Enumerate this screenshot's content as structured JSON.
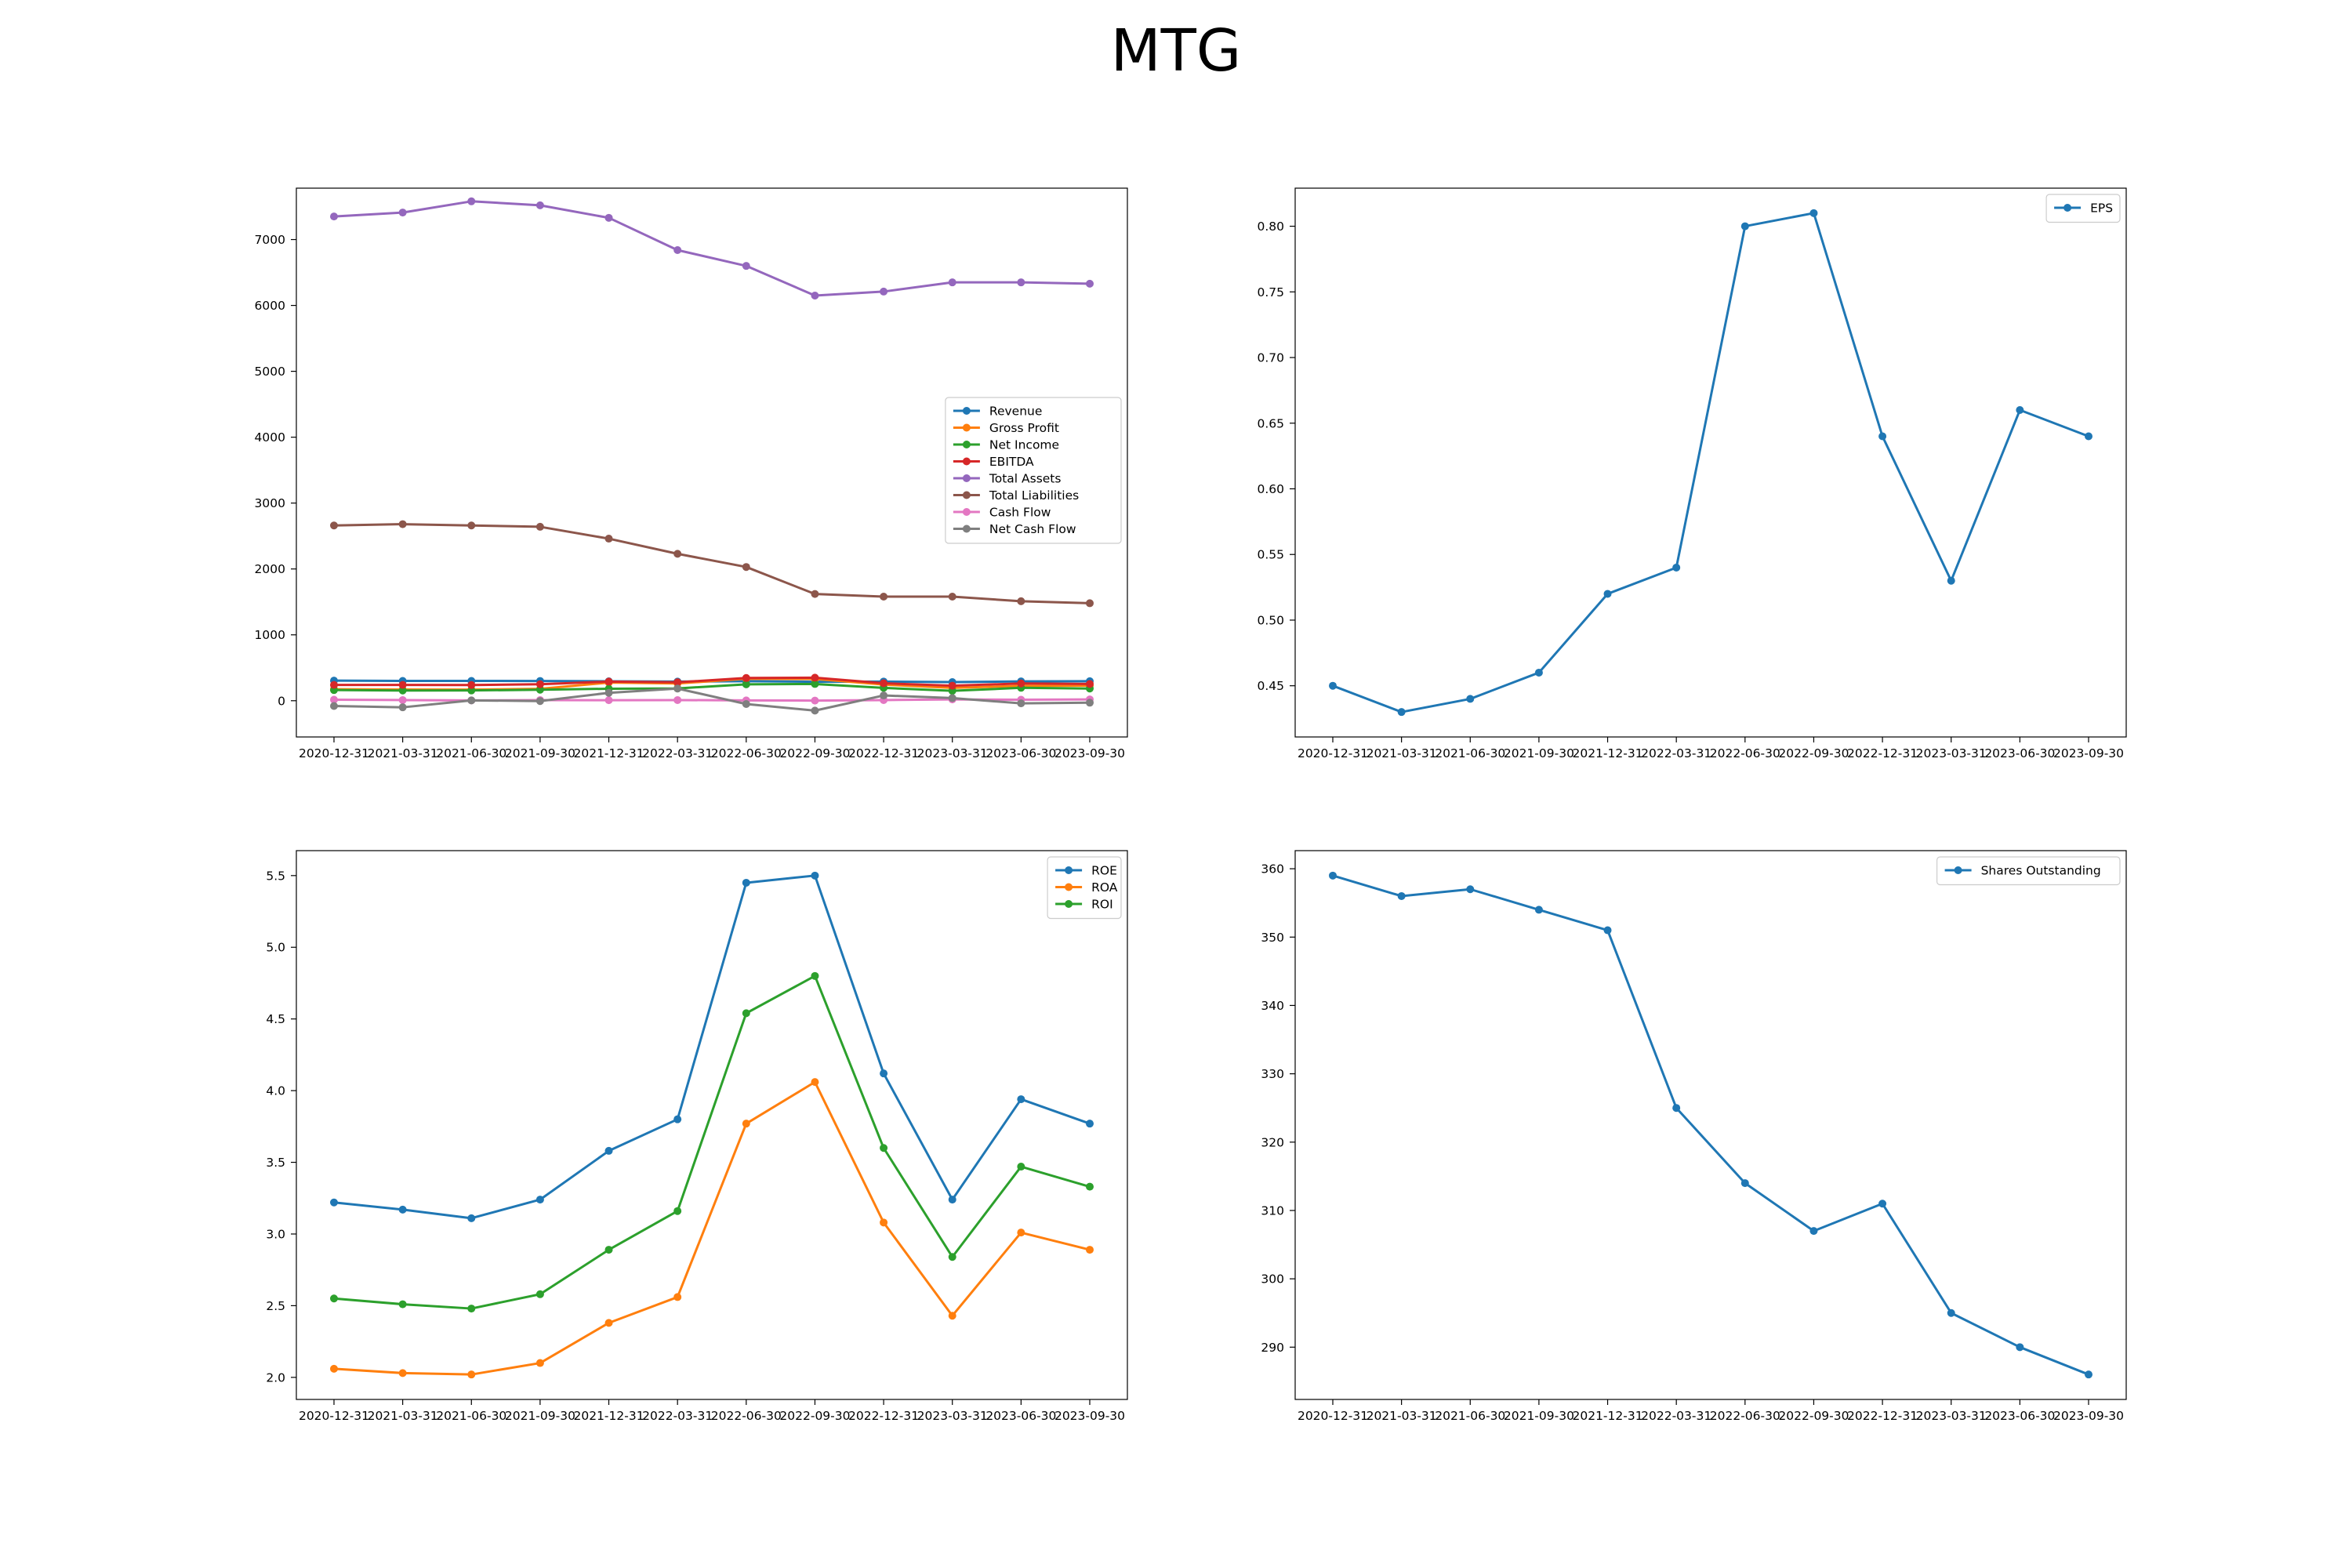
{
  "title": "MTG",
  "chart_data": [
    {
      "type": "line",
      "title": "",
      "xlabel": "",
      "ylabel": "",
      "categories": [
        "2020-12-31",
        "2021-03-31",
        "2021-06-30",
        "2021-09-30",
        "2021-12-31",
        "2022-03-31",
        "2022-06-30",
        "2022-09-30",
        "2022-12-31",
        "2023-03-31",
        "2023-06-30",
        "2023-09-30"
      ],
      "ylim": [
        -550,
        7780
      ],
      "yticks": [
        0,
        1000,
        2000,
        3000,
        4000,
        5000,
        6000,
        7000
      ],
      "ytick_decimals": 0,
      "legend": "center-right",
      "grid": false,
      "series": [
        {
          "name": "Revenue",
          "color": "#1f77b4",
          "values": [
            305,
            301,
            301,
            300,
            295,
            290,
            297,
            288,
            291,
            283,
            293,
            296
          ]
        },
        {
          "name": "Gross Profit",
          "color": "#ff7f0e",
          "values": [
            175,
            170,
            168,
            180,
            275,
            262,
            333,
            330,
            245,
            195,
            225,
            230
          ]
        },
        {
          "name": "Net Income",
          "color": "#2ca02c",
          "values": [
            162,
            155,
            156,
            167,
            182,
            187,
            249,
            254,
            195,
            150,
            196,
            185
          ]
        },
        {
          "name": "EBITDA",
          "color": "#d62728",
          "values": [
            240,
            240,
            238,
            250,
            290,
            280,
            345,
            350,
            265,
            228,
            262,
            255
          ]
        },
        {
          "name": "Total Assets",
          "color": "#9467bd",
          "values": [
            7350,
            7410,
            7580,
            7520,
            7330,
            6840,
            6600,
            6150,
            6210,
            6350,
            6350,
            6330
          ]
        },
        {
          "name": "Total Liabilities",
          "color": "#8c564b",
          "values": [
            2660,
            2680,
            2660,
            2640,
            2460,
            2230,
            2030,
            1620,
            1580,
            1580,
            1510,
            1480
          ]
        },
        {
          "name": "Cash Flow",
          "color": "#e377c2",
          "values": [
            15,
            10,
            5,
            10,
            8,
            10,
            5,
            2,
            10,
            20,
            15,
            20
          ]
        },
        {
          "name": "Net Cash Flow",
          "color": "#7f7f7f",
          "values": [
            -80,
            -100,
            5,
            -5,
            120,
            185,
            -50,
            -150,
            80,
            40,
            -40,
            -30
          ]
        }
      ]
    },
    {
      "type": "line",
      "title": "",
      "xlabel": "",
      "ylabel": "",
      "categories": [
        "2020-12-31",
        "2021-03-31",
        "2021-06-30",
        "2021-09-30",
        "2021-12-31",
        "2022-03-31",
        "2022-06-30",
        "2022-09-30",
        "2022-12-31",
        "2023-03-31",
        "2023-06-30",
        "2023-09-30"
      ],
      "ylim": [
        0.411,
        0.829
      ],
      "yticks": [
        0.45,
        0.5,
        0.55,
        0.6,
        0.65,
        0.7,
        0.75,
        0.8
      ],
      "ytick_decimals": 2,
      "legend": "top-right",
      "grid": false,
      "series": [
        {
          "name": "EPS",
          "color": "#1f77b4",
          "values": [
            0.45,
            0.43,
            0.44,
            0.46,
            0.52,
            0.54,
            0.8,
            0.81,
            0.64,
            0.53,
            0.66,
            0.64
          ]
        }
      ]
    },
    {
      "type": "line",
      "title": "",
      "xlabel": "",
      "ylabel": "",
      "categories": [
        "2020-12-31",
        "2021-03-31",
        "2021-06-30",
        "2021-09-30",
        "2021-12-31",
        "2022-03-31",
        "2022-06-30",
        "2022-09-30",
        "2022-12-31",
        "2023-03-31",
        "2023-06-30",
        "2023-09-30"
      ],
      "ylim": [
        1.846,
        5.674
      ],
      "yticks": [
        2.0,
        2.5,
        3.0,
        3.5,
        4.0,
        4.5,
        5.0,
        5.5
      ],
      "ytick_decimals": 1,
      "legend": "top-right",
      "grid": false,
      "series": [
        {
          "name": "ROE",
          "color": "#1f77b4",
          "values": [
            3.22,
            3.17,
            3.11,
            3.24,
            3.58,
            3.8,
            5.45,
            5.5,
            4.12,
            3.24,
            3.94,
            3.77
          ]
        },
        {
          "name": "ROA",
          "color": "#ff7f0e",
          "values": [
            2.06,
            2.03,
            2.02,
            2.1,
            2.38,
            2.56,
            3.77,
            4.06,
            3.08,
            2.43,
            3.01,
            2.89
          ]
        },
        {
          "name": "ROI",
          "color": "#2ca02c",
          "values": [
            2.55,
            2.51,
            2.48,
            2.58,
            2.89,
            3.16,
            4.54,
            4.8,
            3.6,
            2.84,
            3.47,
            3.33
          ]
        }
      ]
    },
    {
      "type": "line",
      "title": "",
      "xlabel": "",
      "ylabel": "",
      "categories": [
        "2020-12-31",
        "2021-03-31",
        "2021-06-30",
        "2021-09-30",
        "2021-12-31",
        "2022-03-31",
        "2022-06-30",
        "2022-09-30",
        "2022-12-31",
        "2023-03-31",
        "2023-06-30",
        "2023-09-30"
      ],
      "ylim": [
        282.35,
        362.65
      ],
      "yticks": [
        290,
        300,
        310,
        320,
        330,
        340,
        350,
        360
      ],
      "ytick_decimals": 0,
      "legend": "top-right",
      "grid": false,
      "series": [
        {
          "name": "Shares Outstanding",
          "color": "#1f77b4",
          "values": [
            359,
            356,
            357,
            354,
            351,
            325,
            314,
            307,
            311,
            295,
            290,
            286
          ]
        }
      ]
    }
  ]
}
